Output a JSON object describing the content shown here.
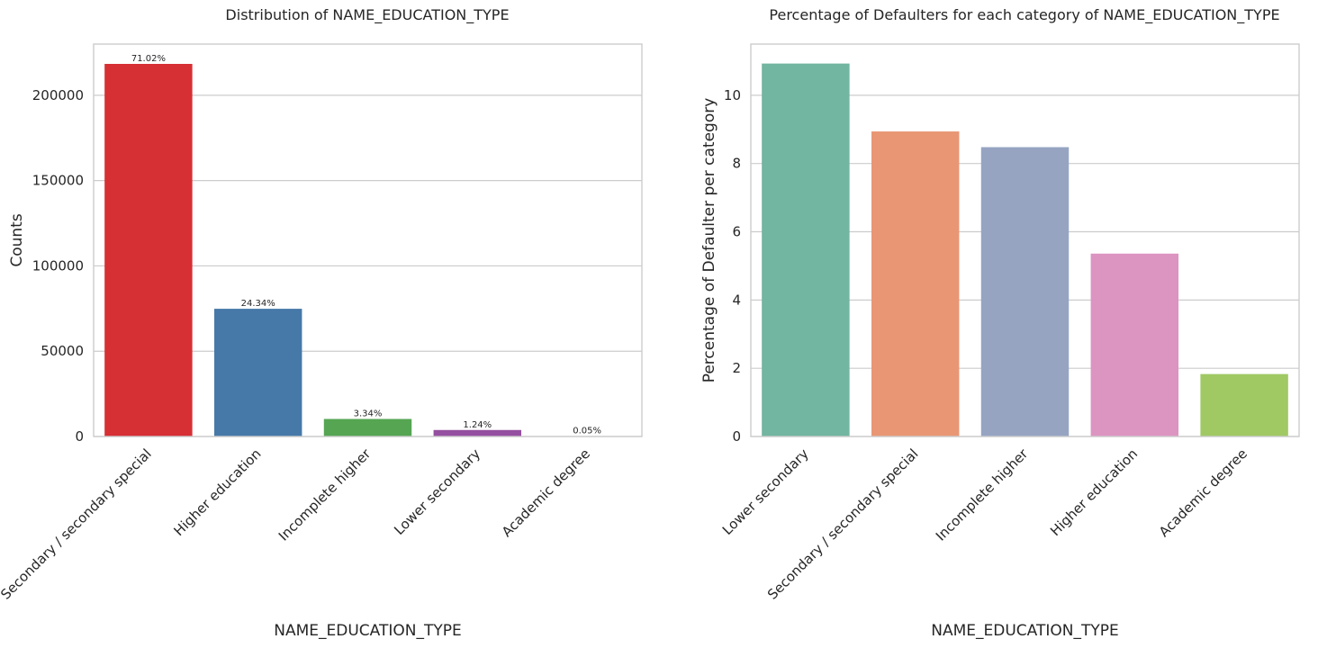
{
  "chart_data": [
    {
      "type": "bar",
      "title": "Distribution of NAME_EDUCATION_TYPE",
      "xlabel": "NAME_EDUCATION_TYPE",
      "ylabel": "Counts",
      "categories": [
        "Secondary / secondary special",
        "Higher education",
        "Incomplete higher",
        "Lower secondary",
        "Academic degree"
      ],
      "values": [
        218391,
        74863,
        10277,
        3816,
        164
      ],
      "data_labels": [
        "71.02%",
        "24.34%",
        "3.34%",
        "1.24%",
        "0.05%"
      ],
      "colors": [
        "#d62f34",
        "#4679a8",
        "#55a552",
        "#944fa0",
        "#ff7f00"
      ],
      "ylim": [
        0,
        230000
      ],
      "yticks": [
        0,
        50000,
        100000,
        150000,
        200000
      ],
      "grid": "horizontal"
    },
    {
      "type": "bar",
      "title": "Percentage of Defaulters for each category of NAME_EDUCATION_TYPE",
      "xlabel": "NAME_EDUCATION_TYPE",
      "ylabel": "Percentage of Defaulter per category",
      "categories": [
        "Lower secondary",
        "Secondary / secondary special",
        "Incomplete higher",
        "Higher education",
        "Academic degree"
      ],
      "values": [
        10.93,
        8.94,
        8.48,
        5.36,
        1.83
      ],
      "colors": [
        "#72b5a0",
        "#e99674",
        "#96a4c2",
        "#dc94c1",
        "#a0c964"
      ],
      "ylim": [
        0,
        11.5
      ],
      "yticks": [
        0,
        2,
        4,
        6,
        8,
        10
      ],
      "grid": "horizontal"
    }
  ]
}
